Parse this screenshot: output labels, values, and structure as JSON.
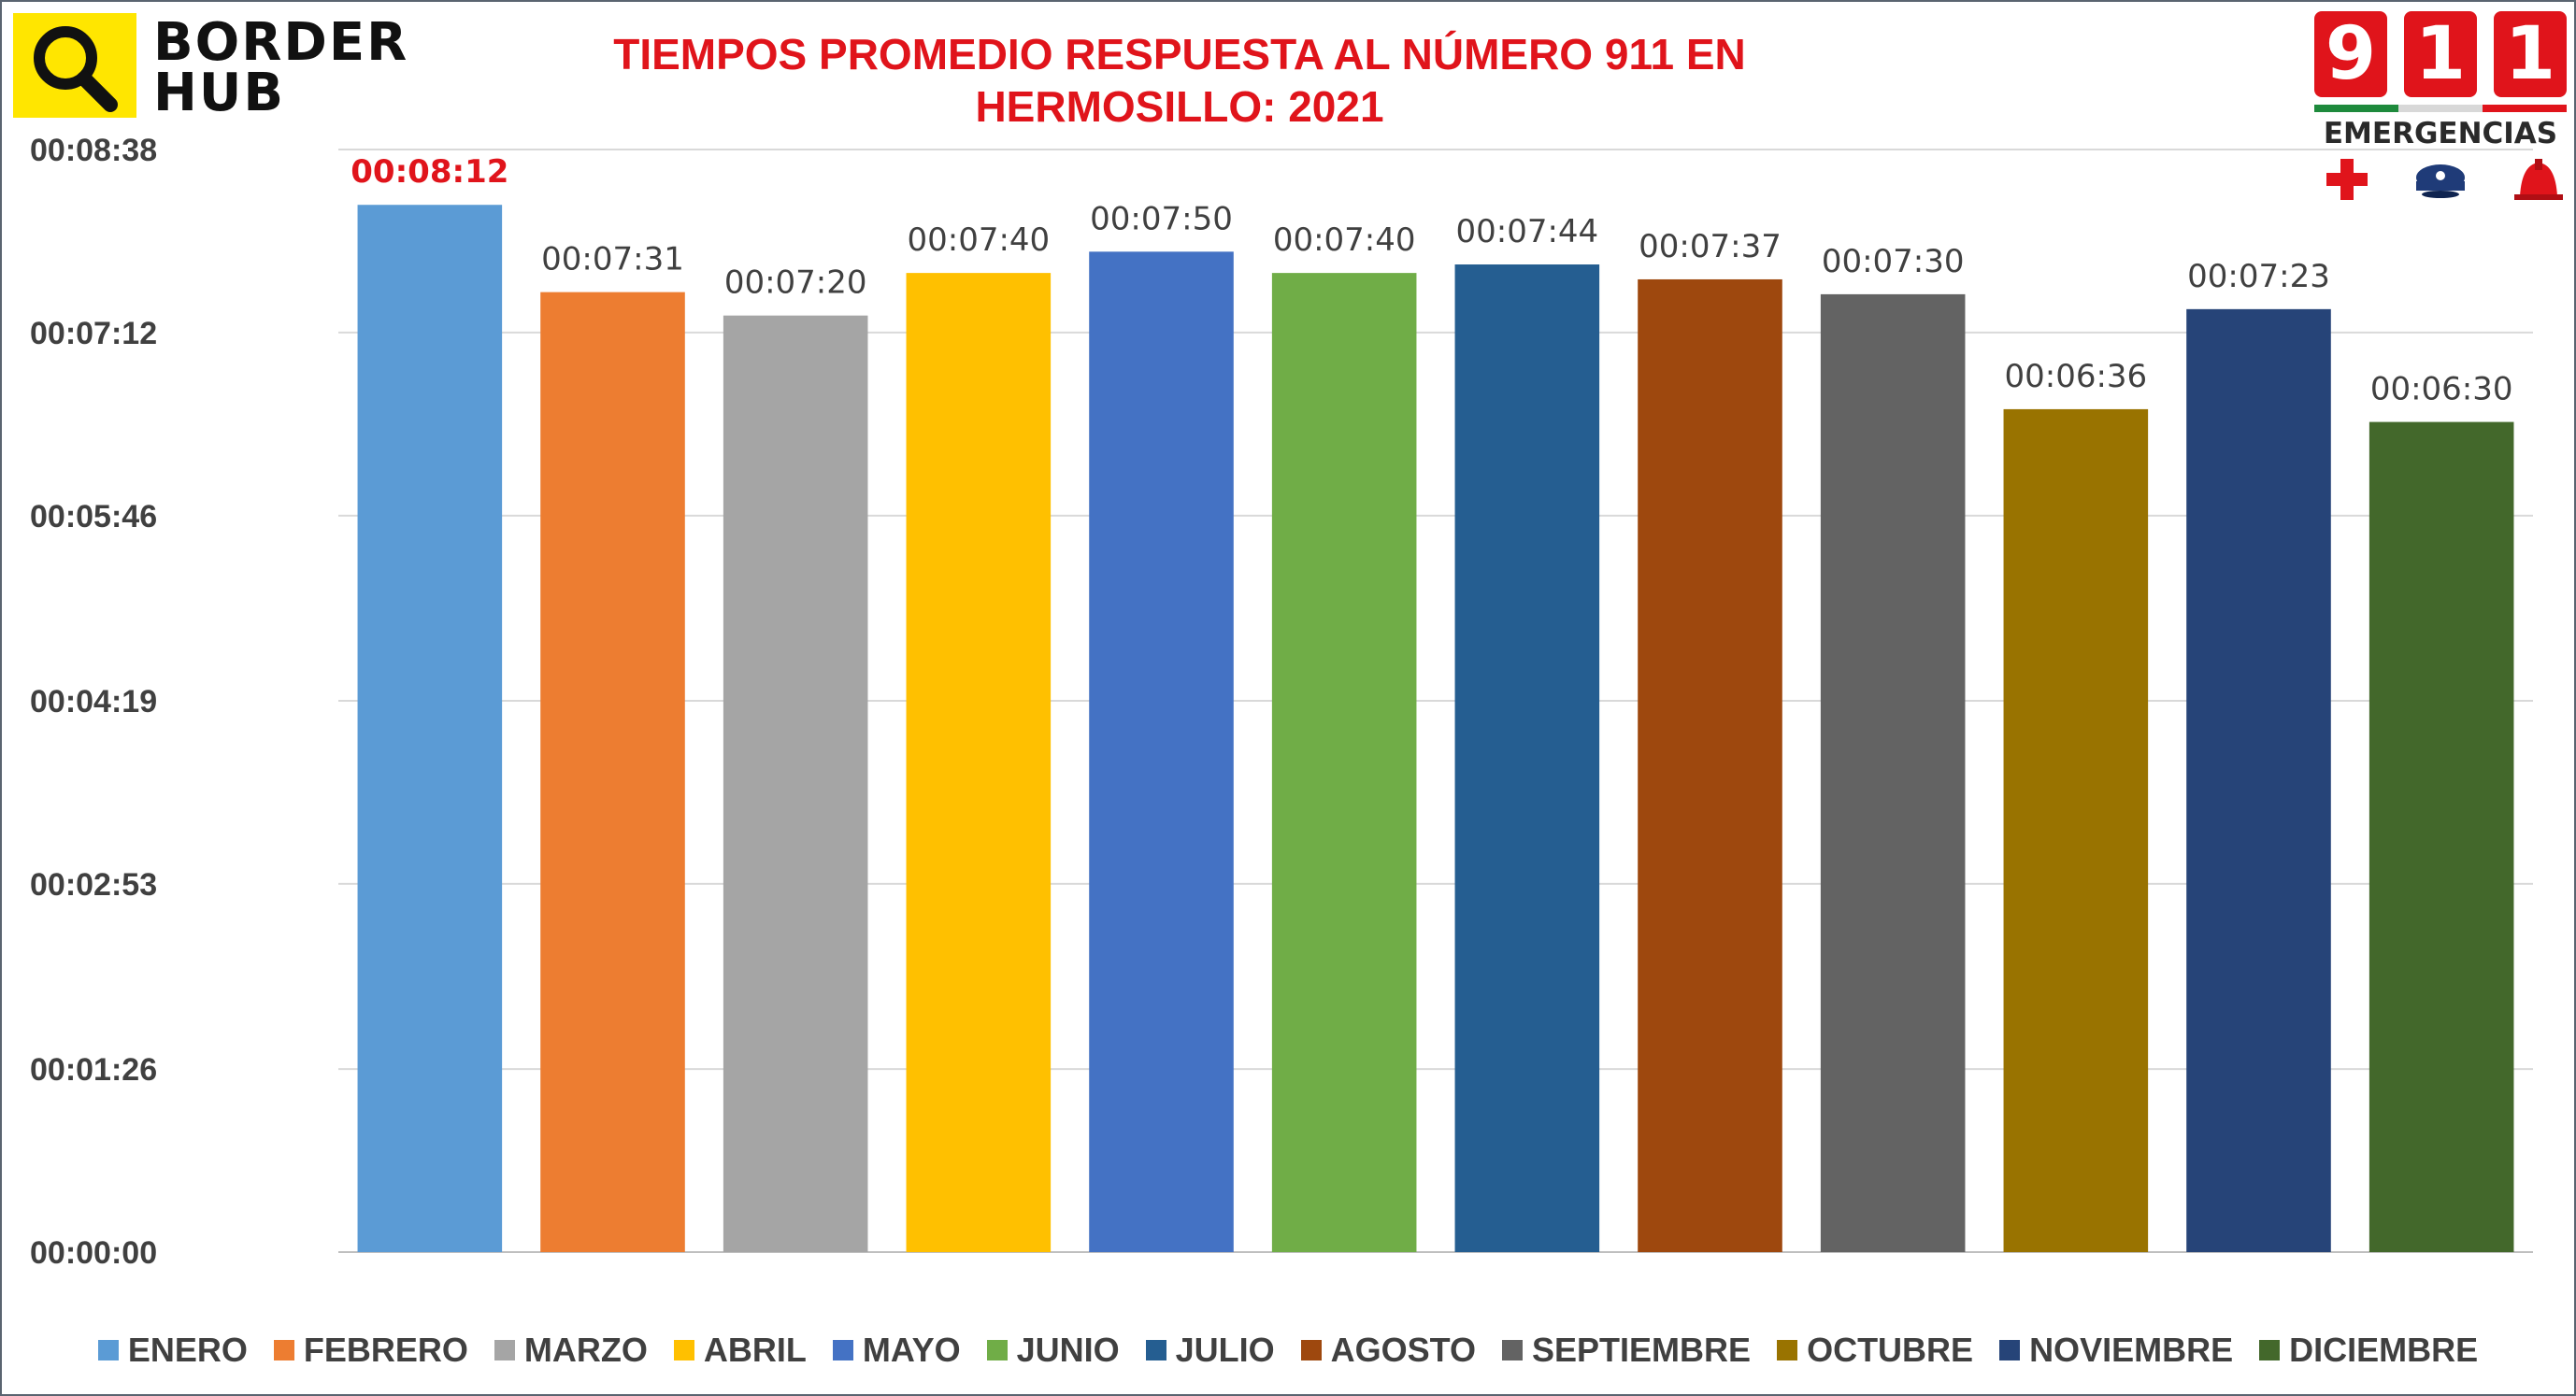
{
  "branding": {
    "left_logo_line1": "BORDER",
    "left_logo_line2": "HUB",
    "left_logo_icon": "magnifier-icon",
    "left_logo_color": "#ffe600",
    "right_logo_digits": [
      "9",
      "1",
      "1"
    ],
    "right_logo_subtitle": "EMERGENCIAS",
    "right_logo_icons": [
      "red-cross-icon",
      "police-cap-icon",
      "firefighter-helmet-icon"
    ],
    "right_logo_color": "#e0141b"
  },
  "chart_data": {
    "type": "bar",
    "title": "TIEMPOS PROMEDIO RESPUESTA AL NÚMERO 911 EN HERMOSILLO: 2021",
    "xlabel": "",
    "ylabel": "",
    "unit": "seconds",
    "ylim": [
      0,
      518
    ],
    "yticks": [
      0,
      86,
      173,
      259,
      346,
      432,
      518
    ],
    "ytick_labels": [
      "00:00:00",
      "00:01:26",
      "00:02:53",
      "00:04:19",
      "00:05:46",
      "00:07:12",
      "00:08:38"
    ],
    "grid": true,
    "legend_position": "bottom",
    "categories": [
      "ENERO",
      "FEBRERO",
      "MARZO",
      "ABRIL",
      "MAYO",
      "JUNIO",
      "JULIO",
      "AGOSTO",
      "SEPTIEMBRE",
      "OCTUBRE",
      "NOVIEMBRE",
      "DICIEMBRE"
    ],
    "values": [
      492,
      451,
      440,
      460,
      470,
      460,
      464,
      457,
      450,
      396,
      443,
      390
    ],
    "data_labels": [
      "00:08:12",
      "00:07:31",
      "00:07:20",
      "00:07:40",
      "00:07:50",
      "00:07:40",
      "00:07:44",
      "00:07:37",
      "00:07:30",
      "00:06:36",
      "00:07:23",
      "00:06:30"
    ],
    "highlight_index": 0,
    "highlight_label_color": "#e0141b",
    "colors": [
      "#5b9bd5",
      "#ed7d31",
      "#a5a5a5",
      "#ffc000",
      "#4472c4",
      "#70ad47",
      "#255e91",
      "#9e480e",
      "#636363",
      "#997300",
      "#264478",
      "#43682b"
    ]
  }
}
